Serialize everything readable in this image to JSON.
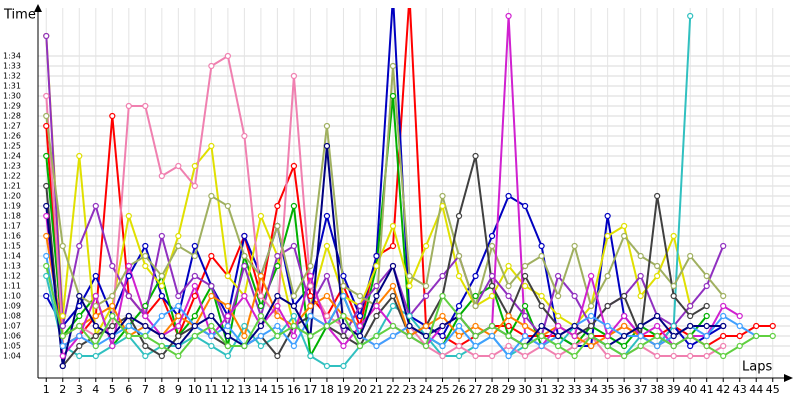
{
  "chart_data": {
    "type": "line",
    "y_axis_label": "Time",
    "x_axis_label": "Laps",
    "x": [
      1,
      2,
      3,
      4,
      5,
      6,
      7,
      8,
      9,
      10,
      11,
      12,
      13,
      14,
      15,
      16,
      17,
      18,
      19,
      20,
      21,
      22,
      23,
      24,
      25,
      26,
      27,
      28,
      29,
      30,
      31,
      32,
      33,
      34,
      35,
      36,
      37,
      38,
      39,
      40,
      41,
      42,
      43,
      44,
      45
    ],
    "xlim": [
      0.5,
      45.5
    ],
    "ylim": [
      62,
      98
    ],
    "yticks": [
      {
        "value": 64,
        "label": "1:04"
      },
      {
        "value": 65,
        "label": "1:05"
      },
      {
        "value": 66,
        "label": "1:06"
      },
      {
        "value": 67,
        "label": "1:07"
      },
      {
        "value": 68,
        "label": "1:08"
      },
      {
        "value": 69,
        "label": "1:09"
      },
      {
        "value": 70,
        "label": "1:10"
      },
      {
        "value": 71,
        "label": "1:11"
      },
      {
        "value": 72,
        "label": "1:12"
      },
      {
        "value": 73,
        "label": "1:13"
      },
      {
        "value": 74,
        "label": "1:14"
      },
      {
        "value": 75,
        "label": "1:15"
      },
      {
        "value": 76,
        "label": "1:16"
      },
      {
        "value": 77,
        "label": "1:17"
      },
      {
        "value": 78,
        "label": "1:18"
      },
      {
        "value": 79,
        "label": "1:19"
      },
      {
        "value": 80,
        "label": "1:20"
      },
      {
        "value": 81,
        "label": "1:21"
      },
      {
        "value": 82,
        "label": "1:22"
      },
      {
        "value": 83,
        "label": "1:23"
      },
      {
        "value": 84,
        "label": "1:24"
      },
      {
        "value": 85,
        "label": "1:25"
      },
      {
        "value": 86,
        "label": "1:26"
      },
      {
        "value": 87,
        "label": "1:27"
      },
      {
        "value": 88,
        "label": "1:28"
      },
      {
        "value": 89,
        "label": "1:29"
      },
      {
        "value": 90,
        "label": "1:30"
      },
      {
        "value": 91,
        "label": "1:31"
      },
      {
        "value": 92,
        "label": "1:32"
      },
      {
        "value": 93,
        "label": "1:33"
      },
      {
        "value": 94,
        "label": "1:34"
      }
    ],
    "grid": true,
    "series": [
      {
        "color": "#ff0000",
        "values": [
          87,
          65,
          66,
          68,
          88,
          70,
          68,
          70,
          66,
          70,
          74,
          72,
          76,
          70,
          79,
          83,
          70,
          68,
          71,
          67,
          74,
          75,
          100,
          67,
          66,
          65,
          66,
          67,
          67,
          66,
          66,
          66,
          67,
          66,
          66,
          67,
          66,
          66,
          67,
          66,
          65,
          66,
          66,
          67,
          67
        ]
      },
      {
        "color": "#0000c0",
        "values": [
          70,
          67,
          69,
          72,
          68,
          72,
          75,
          70,
          68,
          75,
          71,
          68,
          76,
          72,
          77,
          69,
          71,
          78,
          72,
          68,
          74,
          100,
          68,
          67,
          66,
          69,
          72,
          76,
          80,
          79,
          75,
          66,
          65,
          65,
          78,
          68,
          66,
          65,
          67,
          65,
          66,
          67,
          null,
          null,
          null
        ]
      },
      {
        "color": "#00b000",
        "values": [
          84,
          66,
          68,
          70,
          65,
          67,
          69,
          72,
          66,
          68,
          71,
          65,
          74,
          69,
          73,
          79,
          64,
          67,
          70,
          66,
          73,
          90,
          67,
          66,
          65,
          68,
          70,
          71,
          66,
          69,
          65,
          66,
          65,
          67,
          66,
          65,
          67,
          66,
          65,
          66,
          68,
          null,
          null,
          null,
          null
        ]
      },
      {
        "color": "#e0e000",
        "values": [
          96,
          68,
          84,
          66,
          69,
          78,
          73,
          71,
          76,
          83,
          85,
          72,
          70,
          78,
          74,
          67,
          69,
          75,
          70,
          69,
          73,
          77,
          71,
          75,
          79,
          72,
          69,
          70,
          73,
          71,
          70,
          68,
          67,
          69,
          76,
          77,
          70,
          72,
          76,
          69,
          null,
          null,
          null,
          null,
          null
        ]
      },
      {
        "color": "#9030c0",
        "values": [
          96,
          67,
          75,
          79,
          73,
          70,
          68,
          76,
          70,
          72,
          71,
          67,
          73,
          68,
          74,
          75,
          69,
          72,
          66,
          69,
          71,
          73,
          68,
          70,
          72,
          74,
          69,
          72,
          70,
          68,
          66,
          72,
          70,
          67,
          69,
          70,
          72,
          68,
          67,
          69,
          71,
          75,
          null,
          null,
          null
        ]
      },
      {
        "color": "#30c0c0",
        "values": [
          72,
          65,
          64,
          64,
          65,
          66,
          64,
          65,
          65,
          66,
          65,
          64,
          67,
          65,
          66,
          68,
          64,
          63,
          63,
          65,
          66,
          69,
          68,
          66,
          64,
          64,
          65,
          66,
          64,
          65,
          66,
          65,
          67,
          66,
          65,
          64,
          66,
          65,
          67,
          98,
          null,
          null,
          null,
          null,
          null
        ]
      },
      {
        "color": "#f080b0",
        "values": [
          90,
          66,
          67,
          66,
          67,
          89,
          89,
          82,
          83,
          81,
          93,
          94,
          86,
          70,
          68,
          92,
          71,
          68,
          67,
          66,
          65,
          66,
          67,
          65,
          64,
          65,
          64,
          64,
          65,
          64,
          65,
          64,
          65,
          66,
          64,
          64,
          65,
          64,
          64,
          64,
          64,
          65,
          null,
          null,
          null
        ]
      },
      {
        "color": "#a0b060",
        "values": [
          88,
          75,
          70,
          69,
          70,
          73,
          74,
          72,
          75,
          74,
          80,
          79,
          74,
          72,
          77,
          70,
          73,
          87,
          71,
          70,
          69,
          93,
          72,
          71,
          80,
          74,
          69,
          75,
          71,
          73,
          74,
          70,
          75,
          69,
          72,
          76,
          74,
          73,
          71,
          74,
          72,
          70,
          null,
          null,
          null
        ]
      },
      {
        "color": "#404040",
        "values": [
          81,
          63,
          65,
          66,
          67,
          68,
          65,
          64,
          66,
          67,
          66,
          65,
          65,
          66,
          64,
          67,
          68,
          67,
          66,
          65,
          68,
          70,
          66,
          67,
          70,
          78,
          84,
          71,
          68,
          72,
          69,
          67,
          66,
          67,
          69,
          70,
          66,
          80,
          70,
          68,
          69,
          null,
          null,
          null,
          null
        ]
      },
      {
        "color": "#ff8000",
        "values": [
          76,
          66,
          67,
          68,
          69,
          66,
          67,
          66,
          68,
          67,
          70,
          69,
          66,
          72,
          68,
          67,
          69,
          70,
          68,
          67,
          69,
          71,
          66,
          67,
          68,
          66,
          67,
          66,
          68,
          67,
          66,
          67,
          66,
          65,
          66,
          67,
          66,
          65,
          66,
          67,
          null,
          null,
          null,
          null,
          null
        ]
      },
      {
        "color": "#d020d0",
        "values": [
          78,
          64,
          66,
          70,
          65,
          73,
          68,
          66,
          67,
          71,
          66,
          68,
          70,
          67,
          69,
          66,
          72,
          67,
          65,
          67,
          69,
          67,
          66,
          65,
          67,
          68,
          66,
          67,
          98,
          66,
          65,
          67,
          66,
          72,
          66,
          68,
          66,
          67,
          65,
          66,
          66,
          69,
          68,
          null,
          null
        ]
      },
      {
        "color": "#40a0ff",
        "values": [
          74,
          65,
          66,
          65,
          66,
          67,
          66,
          68,
          69,
          67,
          66,
          67,
          65,
          66,
          67,
          65,
          68,
          67,
          70,
          66,
          65,
          66,
          67,
          66,
          65,
          67,
          65,
          66,
          64,
          66,
          65,
          66,
          67,
          68,
          67,
          66,
          66,
          65,
          66,
          67,
          66,
          68,
          67,
          66,
          null
        ]
      },
      {
        "color": "#000080",
        "values": [
          79,
          63,
          70,
          67,
          66,
          68,
          67,
          66,
          65,
          67,
          68,
          66,
          65,
          67,
          70,
          69,
          66,
          85,
          67,
          66,
          70,
          73,
          67,
          66,
          67,
          68,
          66,
          67,
          66,
          65,
          67,
          66,
          67,
          66,
          65,
          66,
          67,
          68,
          66,
          67,
          67,
          67,
          null,
          null,
          null
        ]
      },
      {
        "color": "#60d040",
        "values": [
          73,
          66,
          67,
          65,
          68,
          66,
          66,
          65,
          64,
          66,
          67,
          65,
          65,
          68,
          66,
          67,
          66,
          67,
          68,
          65,
          66,
          67,
          66,
          65,
          70,
          68,
          66,
          67,
          66,
          65,
          66,
          65,
          64,
          66,
          65,
          64,
          65,
          66,
          65,
          66,
          65,
          64,
          65,
          66,
          66
        ]
      }
    ]
  }
}
